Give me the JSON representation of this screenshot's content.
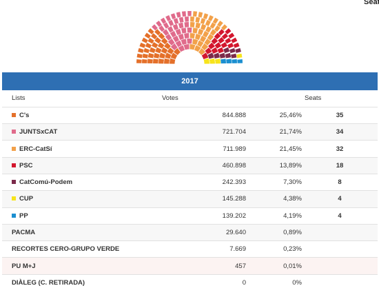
{
  "header": {
    "seat_label": "Seat"
  },
  "year_label": "2017",
  "columns": {
    "lists": "Lists",
    "votes": "Votes",
    "seats": "Seats"
  },
  "parties": [
    {
      "name": "C's",
      "votes": "844.888",
      "pct": "25,46%",
      "seats": "35",
      "color": "#e4702a"
    },
    {
      "name": "JUNTSxCAT",
      "votes": "721.704",
      "pct": "21,74%",
      "seats": "34",
      "color": "#e06b8b"
    },
    {
      "name": "ERC-CatSí",
      "votes": "711.989",
      "pct": "21,45%",
      "seats": "32",
      "color": "#f2a14a"
    },
    {
      "name": "PSC",
      "votes": "460.898",
      "pct": "13,89%",
      "seats": "18",
      "color": "#d3172e"
    },
    {
      "name": "CatComú-Podem",
      "votes": "242.393",
      "pct": "7,30%",
      "seats": "8",
      "color": "#7b2a4a"
    },
    {
      "name": "CUP",
      "votes": "145.288",
      "pct": "4,38%",
      "seats": "4",
      "color": "#f7e41c"
    },
    {
      "name": "PP",
      "votes": "139.202",
      "pct": "4,19%",
      "seats": "4",
      "color": "#1b8fd0"
    },
    {
      "name": "PACMA",
      "votes": "29.640",
      "pct": "0,89%",
      "seats": "",
      "color": ""
    },
    {
      "name": "RECORTES CERO-GRUPO VERDE",
      "votes": "7.669",
      "pct": "0,23%",
      "seats": "",
      "color": ""
    },
    {
      "name": "PU M+J",
      "votes": "457",
      "pct": "0,01%",
      "seats": "",
      "color": ""
    },
    {
      "name": "DIÀLEG (C. RETIRADA)",
      "votes": "0",
      "pct": "0%",
      "seats": "",
      "color": ""
    }
  ]
}
